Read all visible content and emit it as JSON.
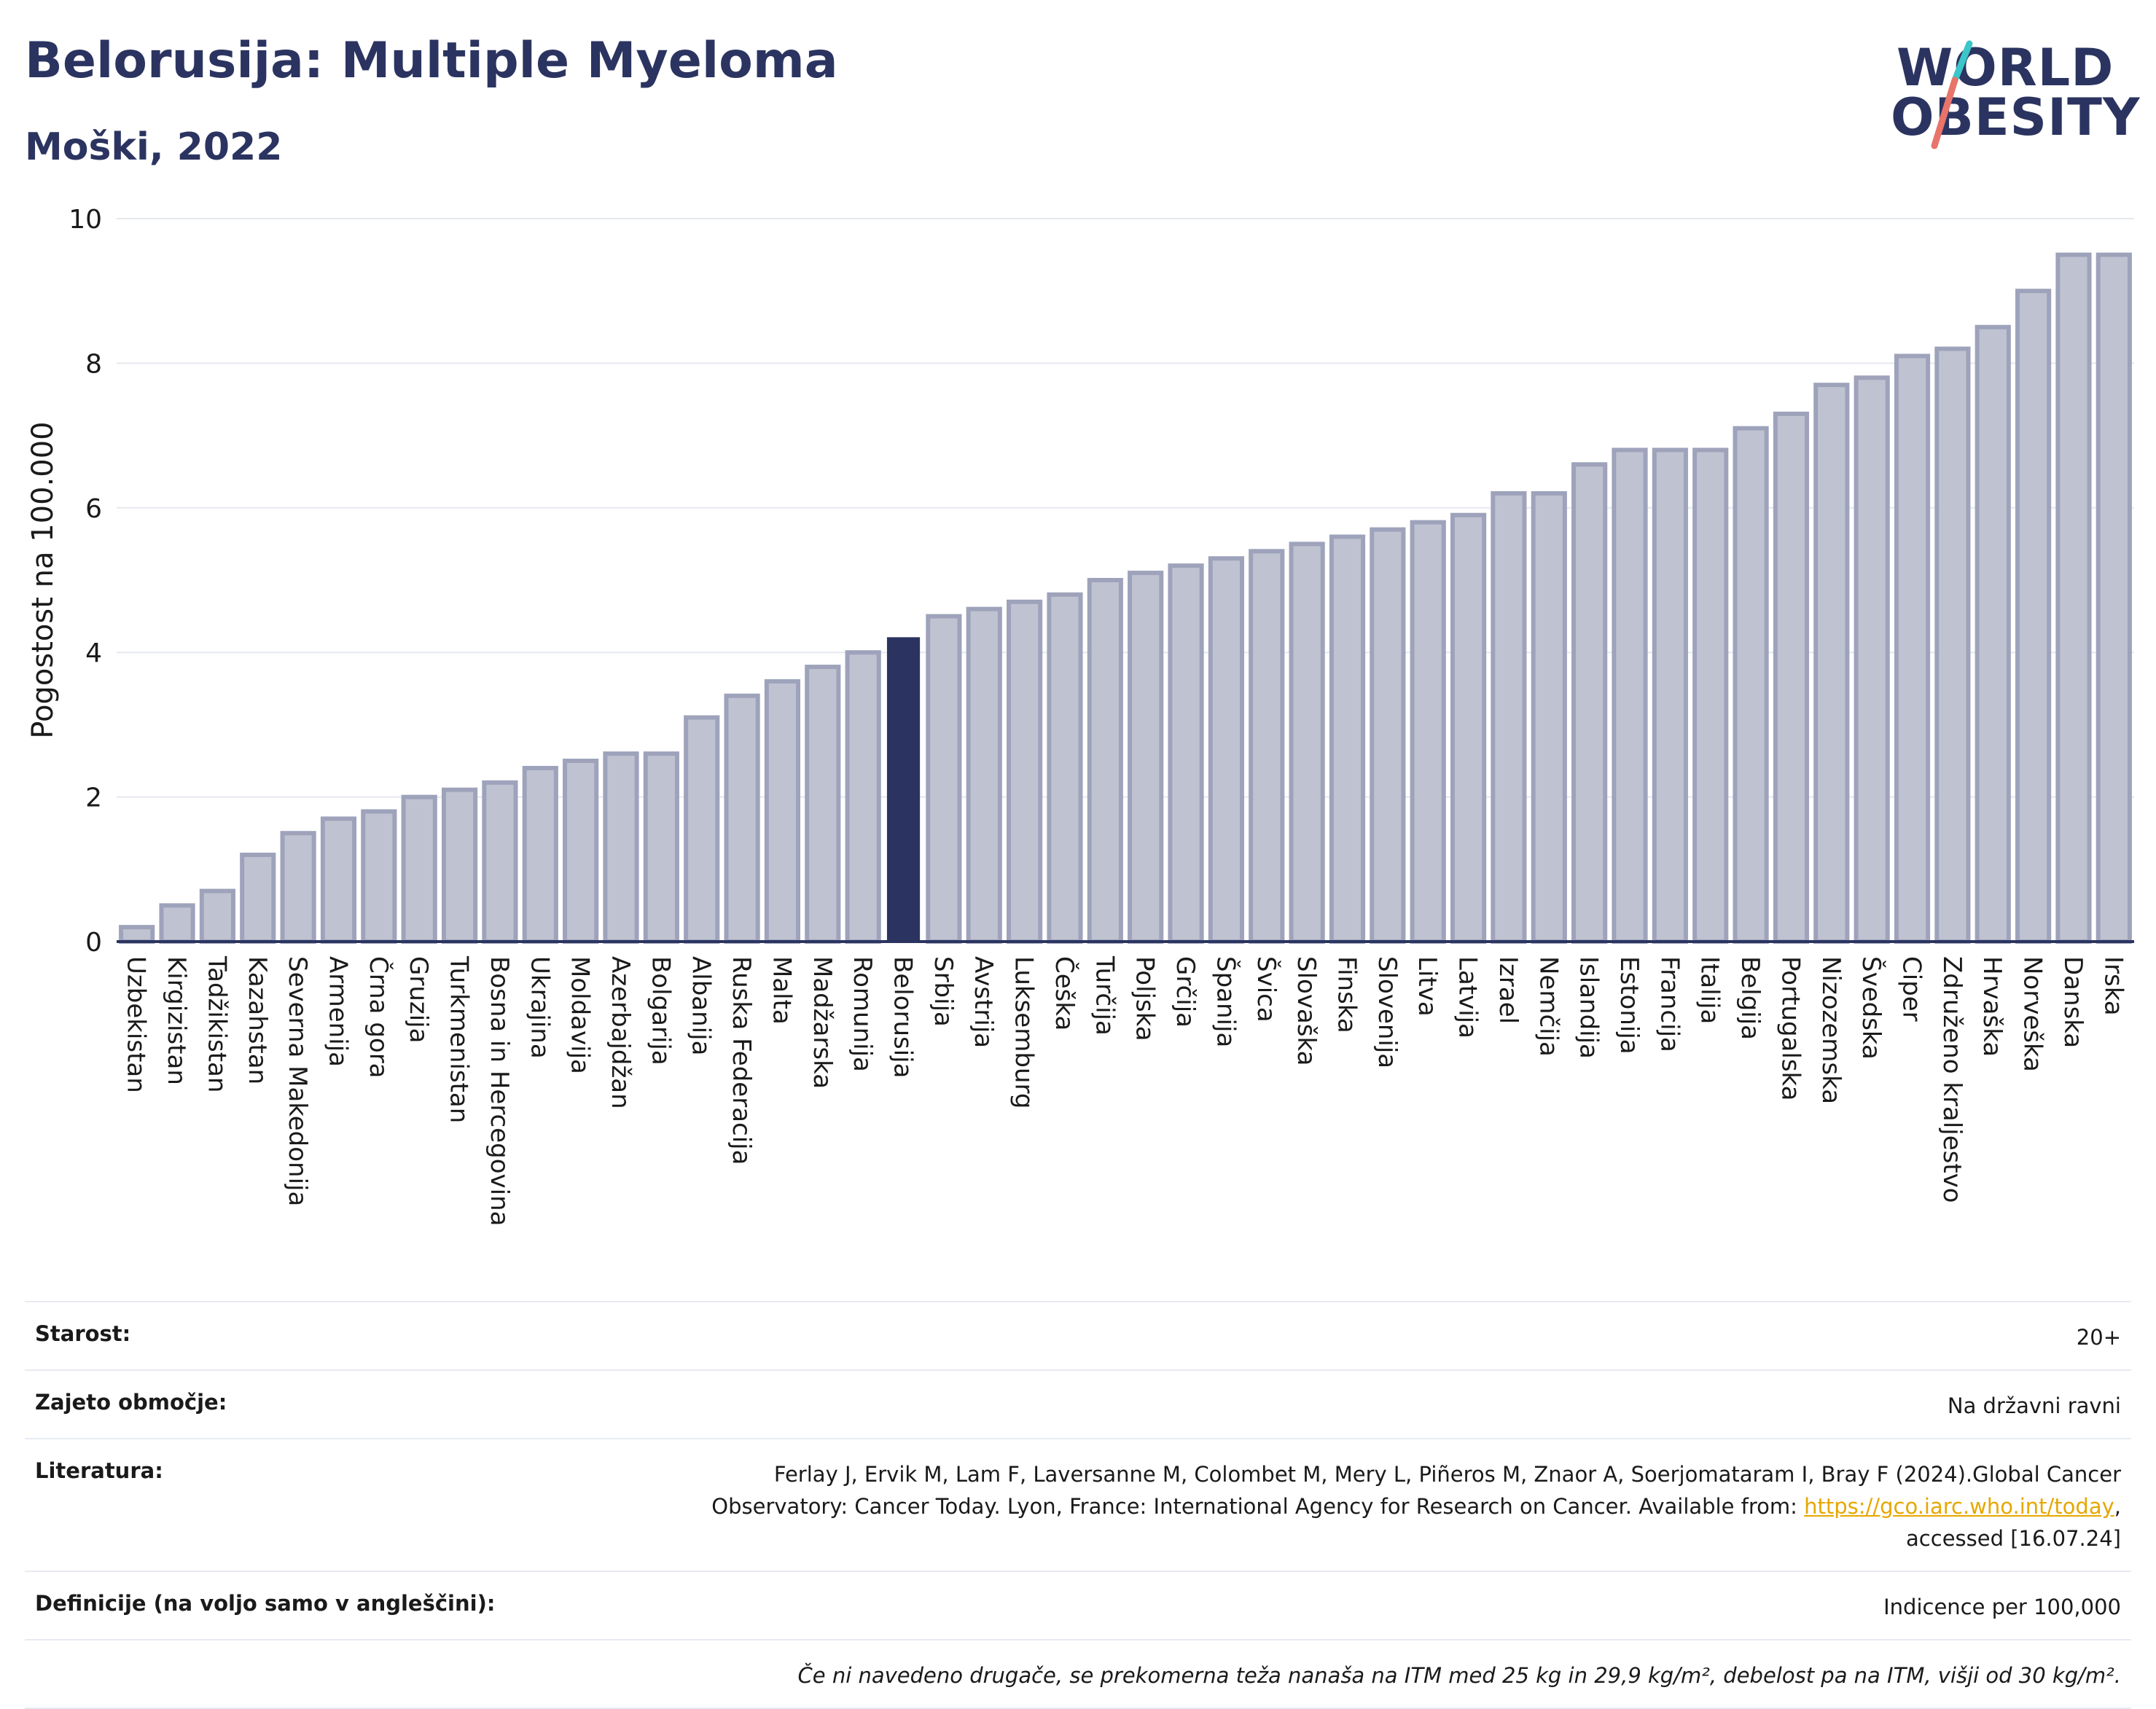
{
  "title": "Belorusija: Multiple Myeloma",
  "subtitle": "Moški, 2022",
  "logo": {
    "line1": "WORLD",
    "line2": "OBESITY"
  },
  "colors": {
    "bar": "#bfc3d1",
    "bar_stroke": "#9ea3bb",
    "highlight": "#2b3460",
    "grid": "#e6e8ef",
    "axis": "#2b3460"
  },
  "chart_data": {
    "type": "bar",
    "ylabel": "Pogostost na 100.000",
    "xlabel": "",
    "ylim": [
      0,
      10
    ],
    "yticks": [
      0,
      2,
      4,
      6,
      8,
      10
    ],
    "grid": true,
    "highlight": "Belorusija",
    "categories": [
      "Uzbekistan",
      "Kirgizistan",
      "Tadžikistan",
      "Kazahstan",
      "Severna Makedonija",
      "Armenija",
      "Črna gora",
      "Gruzija",
      "Turkmenistan",
      "Bosna in Hercegovina",
      "Ukrajina",
      "Moldavija",
      "Azerbajdžan",
      "Bolgarija",
      "Albanija",
      "Ruska Federacija",
      "Malta",
      "Madžarska",
      "Romunija",
      "Belorusija",
      "Srbija",
      "Avstrija",
      "Luksemburg",
      "Češka",
      "Turčija",
      "Poljska",
      "Grčija",
      "Španija",
      "Švica",
      "Slovaška",
      "Finska",
      "Slovenija",
      "Litva",
      "Latvija",
      "Izrael",
      "Nemčija",
      "Islandija",
      "Estonija",
      "Francija",
      "Italija",
      "Belgija",
      "Portugalska",
      "Nizozemska",
      "Švedska",
      "Ciper",
      "Združeno kraljestvo",
      "Hrvaška",
      "Norveška",
      "Danska",
      "Irska"
    ],
    "values": [
      0.2,
      0.5,
      0.7,
      1.2,
      1.5,
      1.7,
      1.8,
      2.0,
      2.1,
      2.2,
      2.4,
      2.5,
      2.6,
      2.6,
      3.1,
      3.4,
      3.6,
      3.8,
      4.0,
      4.2,
      4.5,
      4.6,
      4.7,
      4.8,
      5.0,
      5.1,
      5.2,
      5.3,
      5.4,
      5.5,
      5.6,
      5.7,
      5.8,
      5.9,
      6.2,
      6.2,
      6.6,
      6.8,
      6.8,
      6.8,
      7.1,
      7.3,
      7.7,
      7.8,
      8.1,
      8.2,
      8.5,
      9.0,
      9.5,
      9.5
    ]
  },
  "info": {
    "age_label": "Starost:",
    "age_value": "20+",
    "area_label": "Zajeto območje:",
    "area_value": "Na državni ravni",
    "lit_label": "Literatura:",
    "lit_text1": "Ferlay J, Ervik M, Lam F, Laversanne M, Colombet M, Mery L, Piñeros M, Znaor A, Soerjomataram I, Bray F (2024).Global Cancer",
    "lit_text2": "Observatory: Cancer Today. Lyon, France: International Agency for Research on Cancer. Available from: ",
    "lit_link": "https://gco.iarc.who.int/today",
    "lit_text3": ",",
    "lit_text4": "accessed [16.07.24]",
    "def_label": "Definicije (na voljo samo v angleščini):",
    "def_value": "Indicence per 100,000",
    "note": "Če ni navedeno drugače, se prekomerna teža nanaša na ITM med 25 kg in 29,9 kg/m², debelost pa na ITM, višji od 30 kg/m²."
  }
}
